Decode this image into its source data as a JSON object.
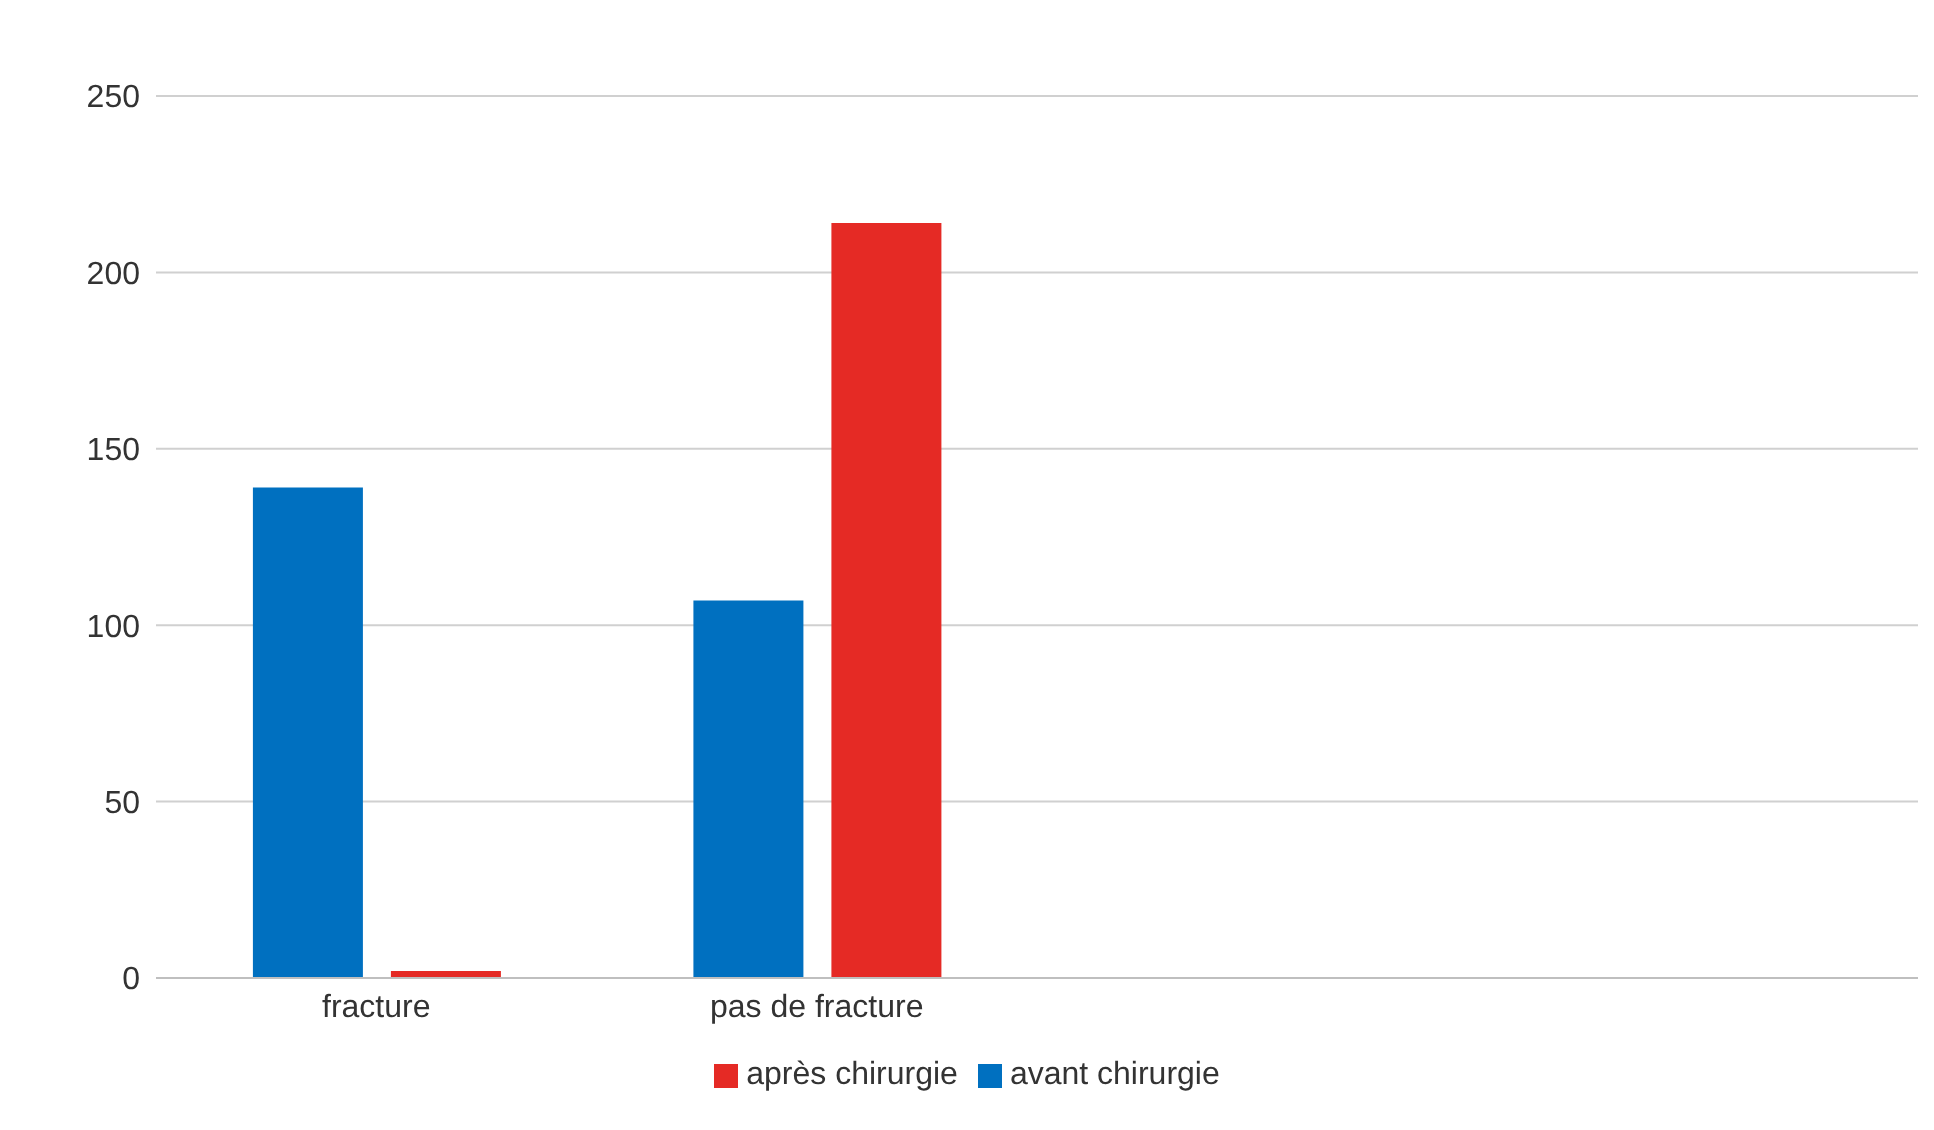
{
  "chart_data": {
    "type": "bar",
    "categories": [
      "fracture",
      "pas de fracture",
      null,
      null
    ],
    "series": [
      {
        "name": "avant chirurgie",
        "color": "#0070c0",
        "values": [
          139,
          107,
          null,
          null
        ]
      },
      {
        "name": "après chirurgie",
        "color": "#e52a25",
        "values": [
          2,
          214,
          null,
          null
        ]
      }
    ],
    "ylim": [
      0,
      250
    ],
    "yticks": [
      0,
      50,
      100,
      150,
      200,
      250
    ],
    "grid": "y",
    "legend": "bottom"
  }
}
